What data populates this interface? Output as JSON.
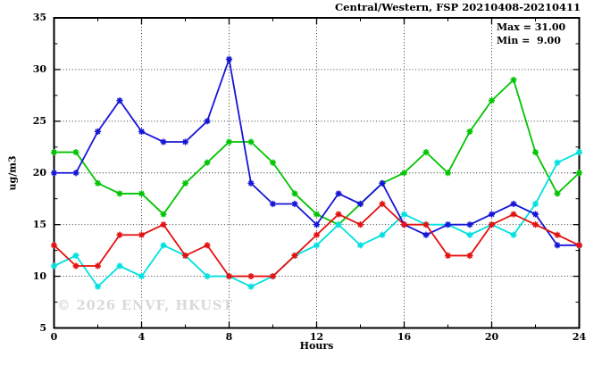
{
  "title": "Central/Western, FSP 20210408-20210411",
  "annotation": {
    "max_label": "Max = 31.00",
    "min_label": "Min =  9.00"
  },
  "watermark": "© 2026 ENVF, HKUST",
  "chart_data": {
    "type": "line",
    "title": "Central/Western, FSP 20210408-20210411",
    "xlabel": "Hours",
    "ylabel": "ug/m3",
    "xlim": [
      0,
      24
    ],
    "ylim": [
      5,
      35
    ],
    "x_ticks": [
      0,
      4,
      8,
      12,
      16,
      20,
      24
    ],
    "y_ticks": [
      5,
      10,
      15,
      20,
      25,
      30,
      35
    ],
    "x_minor_step": 2,
    "y_minor_step": 2.5,
    "grid": true,
    "legend": "none",
    "x": [
      0,
      1,
      2,
      3,
      4,
      5,
      6,
      7,
      8,
      9,
      10,
      11,
      12,
      13,
      14,
      15,
      16,
      17,
      18,
      19,
      20,
      21,
      22,
      23,
      24
    ],
    "series": [
      {
        "color_name": "green",
        "color": "#00c400",
        "values": [
          22,
          22,
          19,
          18,
          18,
          16,
          19,
          21,
          23,
          23,
          21,
          18,
          16,
          15,
          17,
          19,
          20,
          22,
          20,
          24,
          27,
          29,
          22,
          18,
          20
        ]
      },
      {
        "color_name": "cyan",
        "color": "#00e0e0",
        "values": [
          11,
          12,
          9,
          11,
          10,
          13,
          12,
          10,
          10,
          9,
          10,
          12,
          13,
          15,
          13,
          14,
          16,
          15,
          15,
          14,
          15,
          14,
          17,
          21,
          22
        ]
      },
      {
        "color_name": "blue",
        "color": "#1515d6",
        "values": [
          20,
          20,
          24,
          27,
          24,
          23,
          23,
          25,
          31,
          19,
          17,
          17,
          15,
          18,
          17,
          19,
          15,
          14,
          15,
          15,
          16,
          17,
          16,
          13,
          13
        ]
      },
      {
        "color_name": "red",
        "color": "#e41010",
        "values": [
          13,
          11,
          11,
          14,
          14,
          15,
          12,
          13,
          10,
          10,
          10,
          12,
          14,
          16,
          15,
          17,
          15,
          15,
          12,
          12,
          15,
          16,
          15,
          14,
          13
        ]
      }
    ],
    "stats": {
      "max": 31.0,
      "min": 9.0
    }
  }
}
